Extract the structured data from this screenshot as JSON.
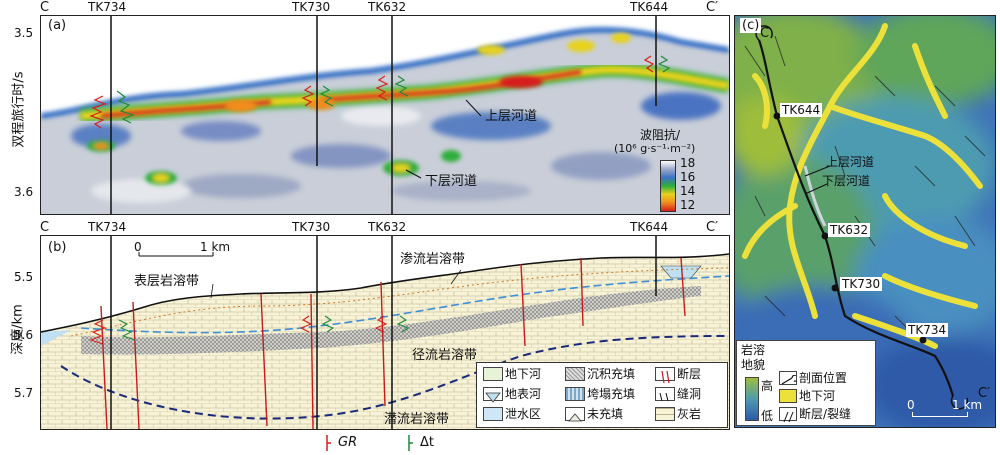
{
  "panel_a": {
    "label": "(a)",
    "section_start": "C",
    "section_end": "C′",
    "wells": [
      "TK734",
      "TK730",
      "TK632",
      "TK644"
    ],
    "y_axis_label": "双程旅行时/s",
    "y_ticks": [
      "3.5",
      "3.6"
    ],
    "annotations": {
      "upper": "上层河道",
      "lower": "下层河道"
    },
    "colorbar": {
      "title": "波阻抗/",
      "unit": "(10⁶ g·s⁻¹·m⁻²)",
      "ticks": [
        "18",
        "16",
        "14",
        "12"
      ],
      "colors": [
        "#ffffff",
        "#9aa7c8",
        "#3b73c6",
        "#2fae3a",
        "#e7d21e",
        "#f08d1d",
        "#d61f1a"
      ]
    }
  },
  "panel_b": {
    "label": "(b)",
    "section_start": "C",
    "section_end": "C′",
    "wells": [
      "TK734",
      "TK730",
      "TK632",
      "TK644"
    ],
    "y_axis_label": "深度/km",
    "y_ticks": [
      "5.5",
      "5.6",
      "5.7"
    ],
    "scale": {
      "zero": "0",
      "one": "1 km"
    },
    "zones": {
      "surface": "表层岩溶带",
      "percolation": "渗流岩溶带",
      "runoff": "径流岩溶带",
      "undercurrent": "潜流岩溶带"
    },
    "legend": [
      {
        "icon": "underground-river-icon",
        "text": "地下河"
      },
      {
        "icon": "sediment-fill-icon",
        "text": "沉积充填"
      },
      {
        "icon": "fault-icon",
        "text": "断层"
      },
      {
        "icon": "surface-river-icon",
        "text": "地表河"
      },
      {
        "icon": "collapse-fill-icon",
        "text": "垮塌充填"
      },
      {
        "icon": "fracture-cave-icon",
        "text": "缝洞"
      },
      {
        "icon": "discharge-area-icon",
        "text": "泄水区"
      },
      {
        "icon": "unfilled-icon",
        "text": "未充填"
      },
      {
        "icon": "limestone-icon",
        "text": "灰岩"
      }
    ],
    "log_legend": {
      "gr": "GR",
      "dt": "Δt"
    }
  },
  "panel_c": {
    "label": "(c)",
    "section_start": "C",
    "section_end": "C′",
    "wells": [
      "TK644",
      "TK632",
      "TK730",
      "TK734"
    ],
    "annotations": {
      "upper": "上层河道",
      "lower": "下层河道"
    },
    "legend_title": "岩溶地貌",
    "legend_high": "高",
    "legend_low": "低",
    "legend_items": [
      {
        "icon": "profile-position-icon",
        "text": "剖面位置"
      },
      {
        "icon": "underground-river-icon",
        "text": "地下河"
      },
      {
        "icon": "fault-fracture-icon",
        "text": "断层/裂缝"
      }
    ],
    "scale": {
      "zero": "0",
      "one": "1 km"
    }
  }
}
